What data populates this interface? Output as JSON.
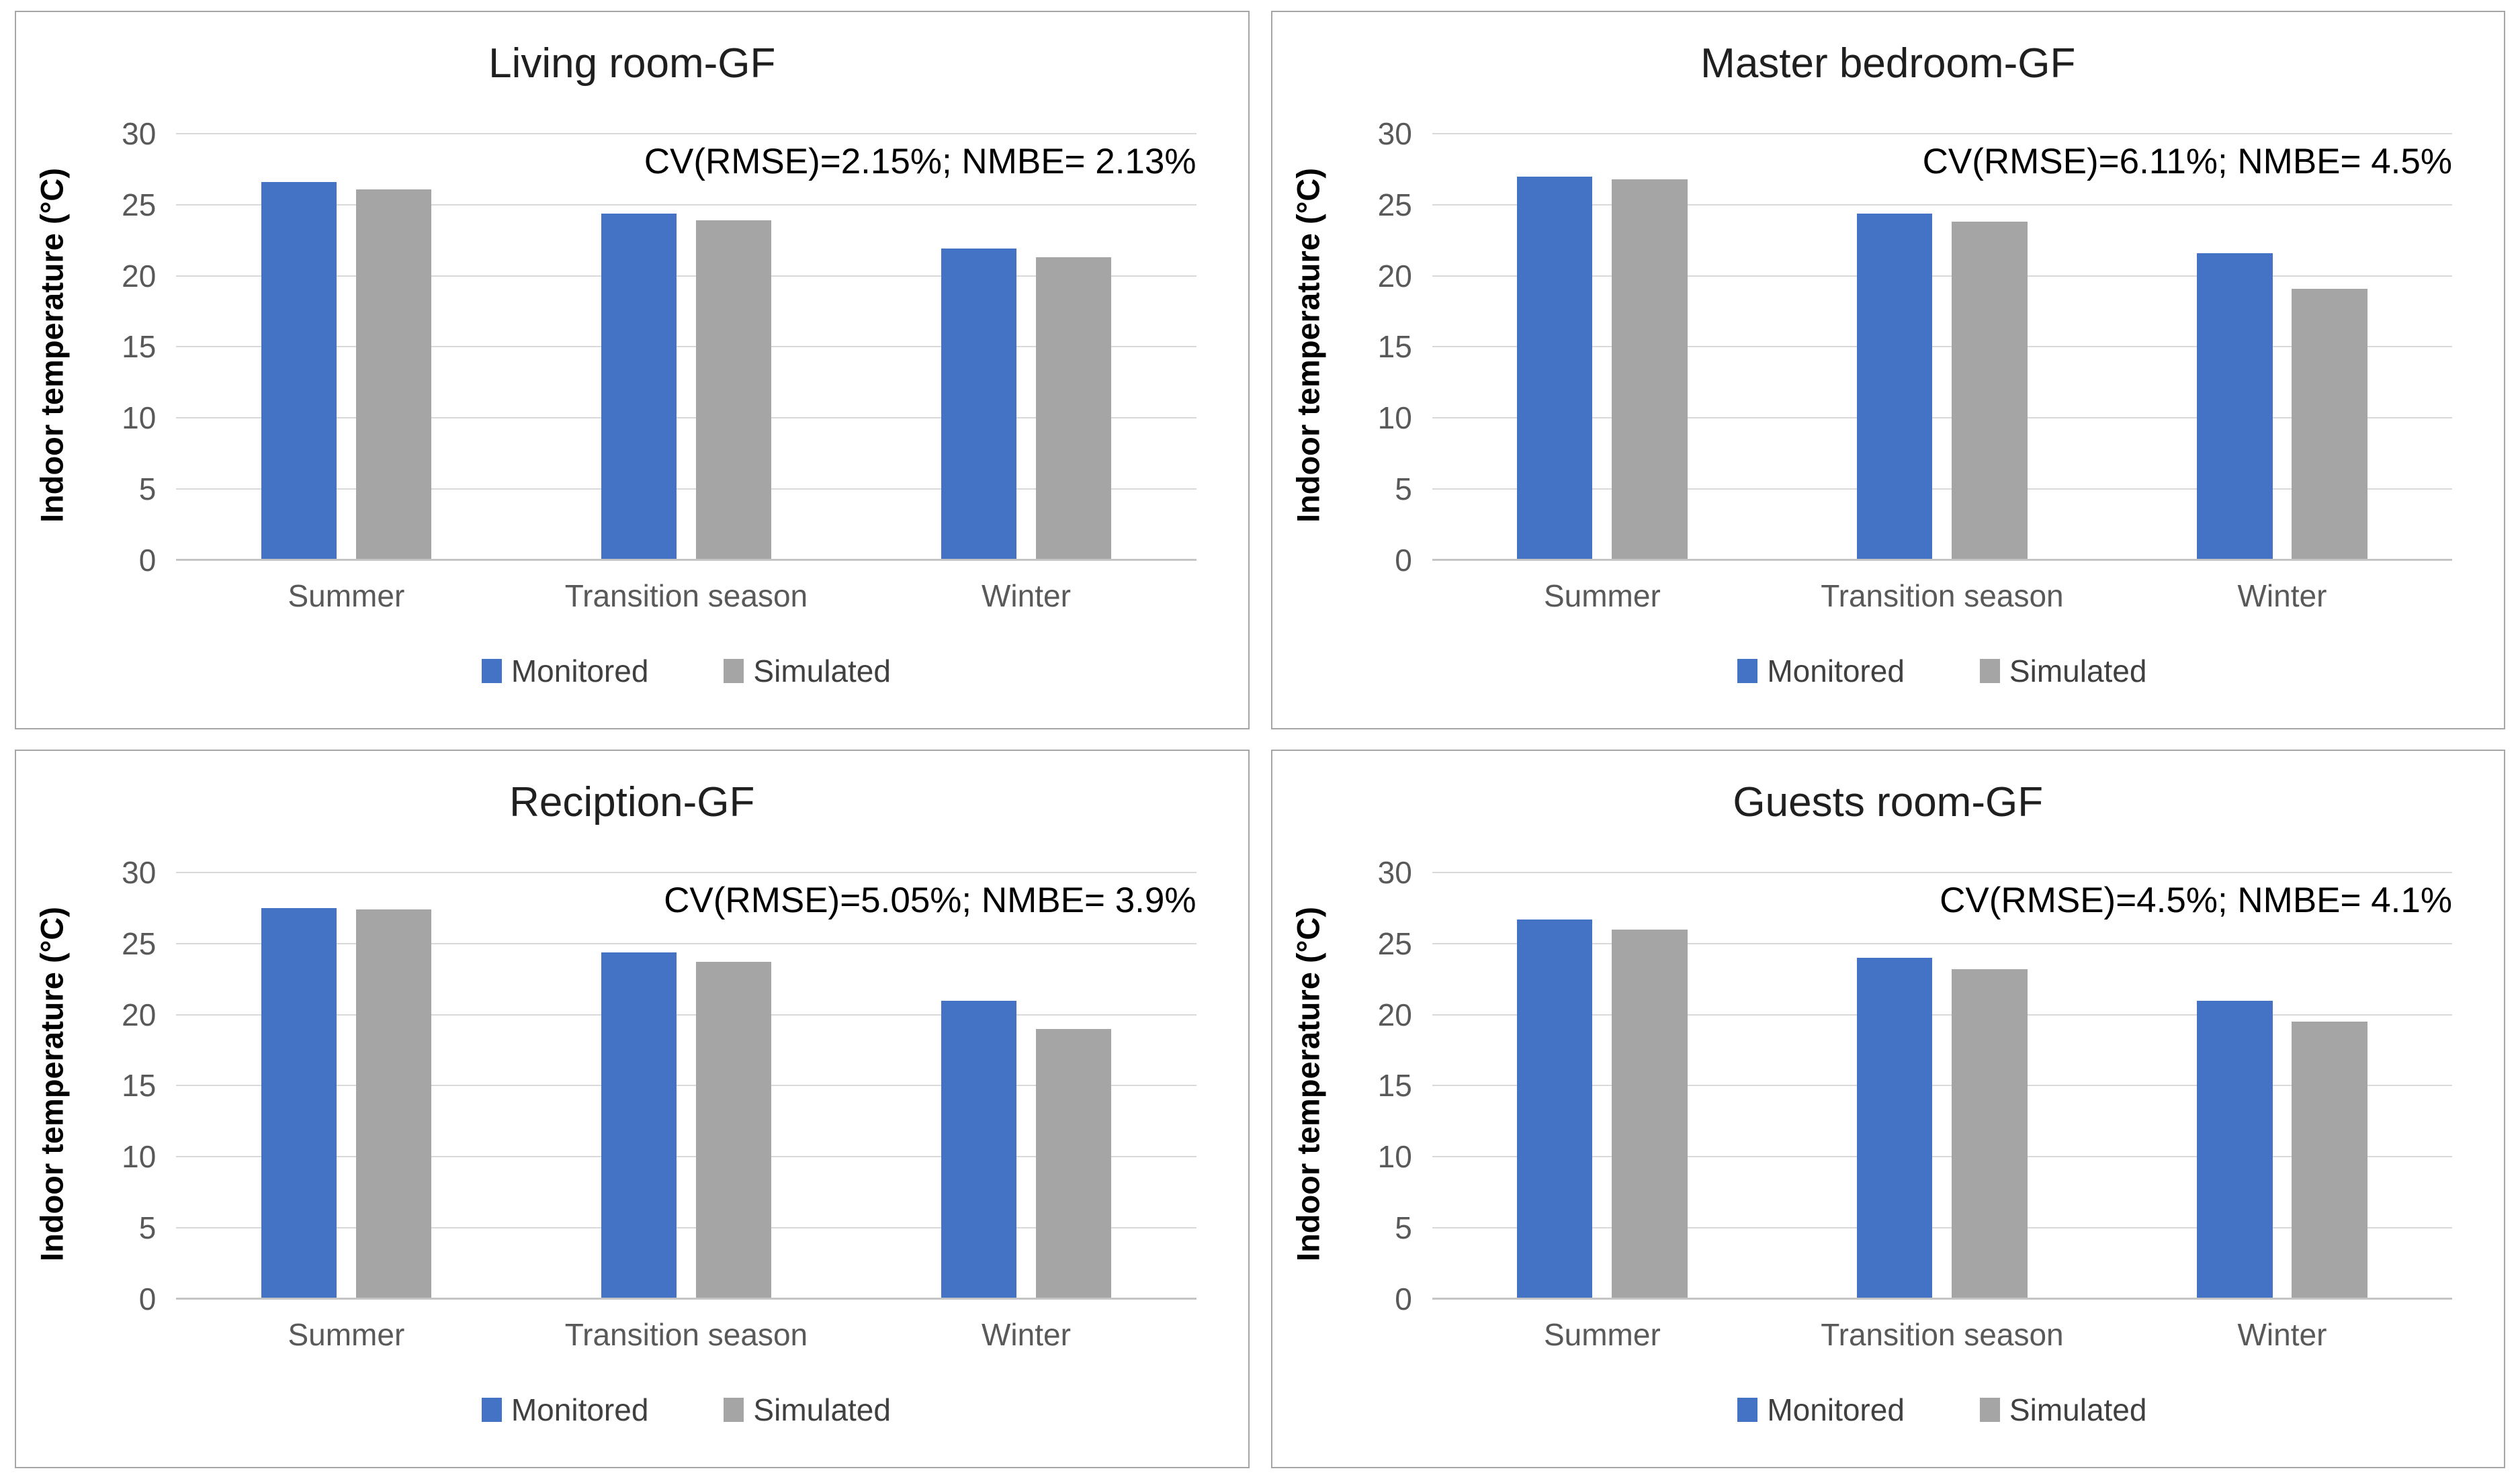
{
  "colors": {
    "monitored": "#4472C4",
    "simulated": "#A5A5A5",
    "gridline": "#D9D9D9",
    "zero_axis_line": "#C5C5C5",
    "tick_label": "#595959",
    "category_label": "#595959",
    "title_text": "#1f1f1f",
    "annotation_text": "#000000",
    "legend_text": "#404040",
    "panel_border": "#A6A6A6"
  },
  "axis": {
    "y_title": "Indoor temperature (°C)",
    "y_ticks": [
      0,
      5,
      10,
      15,
      20,
      25,
      30
    ],
    "y_max": 30,
    "categories": [
      "Summer",
      "Transition season",
      "Winter"
    ]
  },
  "legend": {
    "items": [
      {
        "label": "Monitored",
        "color": "#4472C4"
      },
      {
        "label": "Simulated",
        "color": "#A5A5A5"
      }
    ]
  },
  "chart_data": [
    {
      "type": "bar",
      "title": "Living room-GF",
      "annotation": "CV(RMSE)=2.15%; NMBE= 2.13%",
      "ylabel": "Indoor temperature (°C)",
      "ylim": [
        0,
        30
      ],
      "grid": true,
      "legend_position": "bottom",
      "categories": [
        "Summer",
        "Transition season",
        "Winter"
      ],
      "series": [
        {
          "name": "Monitored",
          "values": [
            26.6,
            24.4,
            21.9
          ]
        },
        {
          "name": "Simulated",
          "values": [
            26.1,
            23.9,
            21.3
          ]
        }
      ]
    },
    {
      "type": "bar",
      "title": "Master bedroom-GF",
      "annotation": "CV(RMSE)=6.11%; NMBE= 4.5%",
      "ylabel": "Indoor temperature (°C)",
      "ylim": [
        0,
        30
      ],
      "grid": true,
      "legend_position": "bottom",
      "categories": [
        "Summer",
        "Transition season",
        "Winter"
      ],
      "series": [
        {
          "name": "Monitored",
          "values": [
            27.0,
            24.4,
            21.6
          ]
        },
        {
          "name": "Simulated",
          "values": [
            26.8,
            23.8,
            19.1
          ]
        }
      ]
    },
    {
      "type": "bar",
      "title": "Reciption-GF",
      "annotation": "CV(RMSE)=5.05%; NMBE= 3.9%",
      "ylabel": "Indoor temperature (°C)",
      "ylim": [
        0,
        30
      ],
      "grid": true,
      "legend_position": "bottom",
      "categories": [
        "Summer",
        "Transition season",
        "Winter"
      ],
      "series": [
        {
          "name": "Monitored",
          "values": [
            27.5,
            24.4,
            21.0
          ]
        },
        {
          "name": "Simulated",
          "values": [
            27.4,
            23.7,
            19.0
          ]
        }
      ]
    },
    {
      "type": "bar",
      "title": "Guests room-GF",
      "annotation": "CV(RMSE)=4.5%; NMBE= 4.1%",
      "ylabel": "Indoor temperature (°C)",
      "ylim": [
        0,
        30
      ],
      "grid": true,
      "legend_position": "bottom",
      "categories": [
        "Summer",
        "Transition season",
        "Winter"
      ],
      "series": [
        {
          "name": "Monitored",
          "values": [
            26.7,
            24.0,
            21.0
          ]
        },
        {
          "name": "Simulated",
          "values": [
            26.0,
            23.2,
            19.5
          ]
        }
      ]
    }
  ]
}
